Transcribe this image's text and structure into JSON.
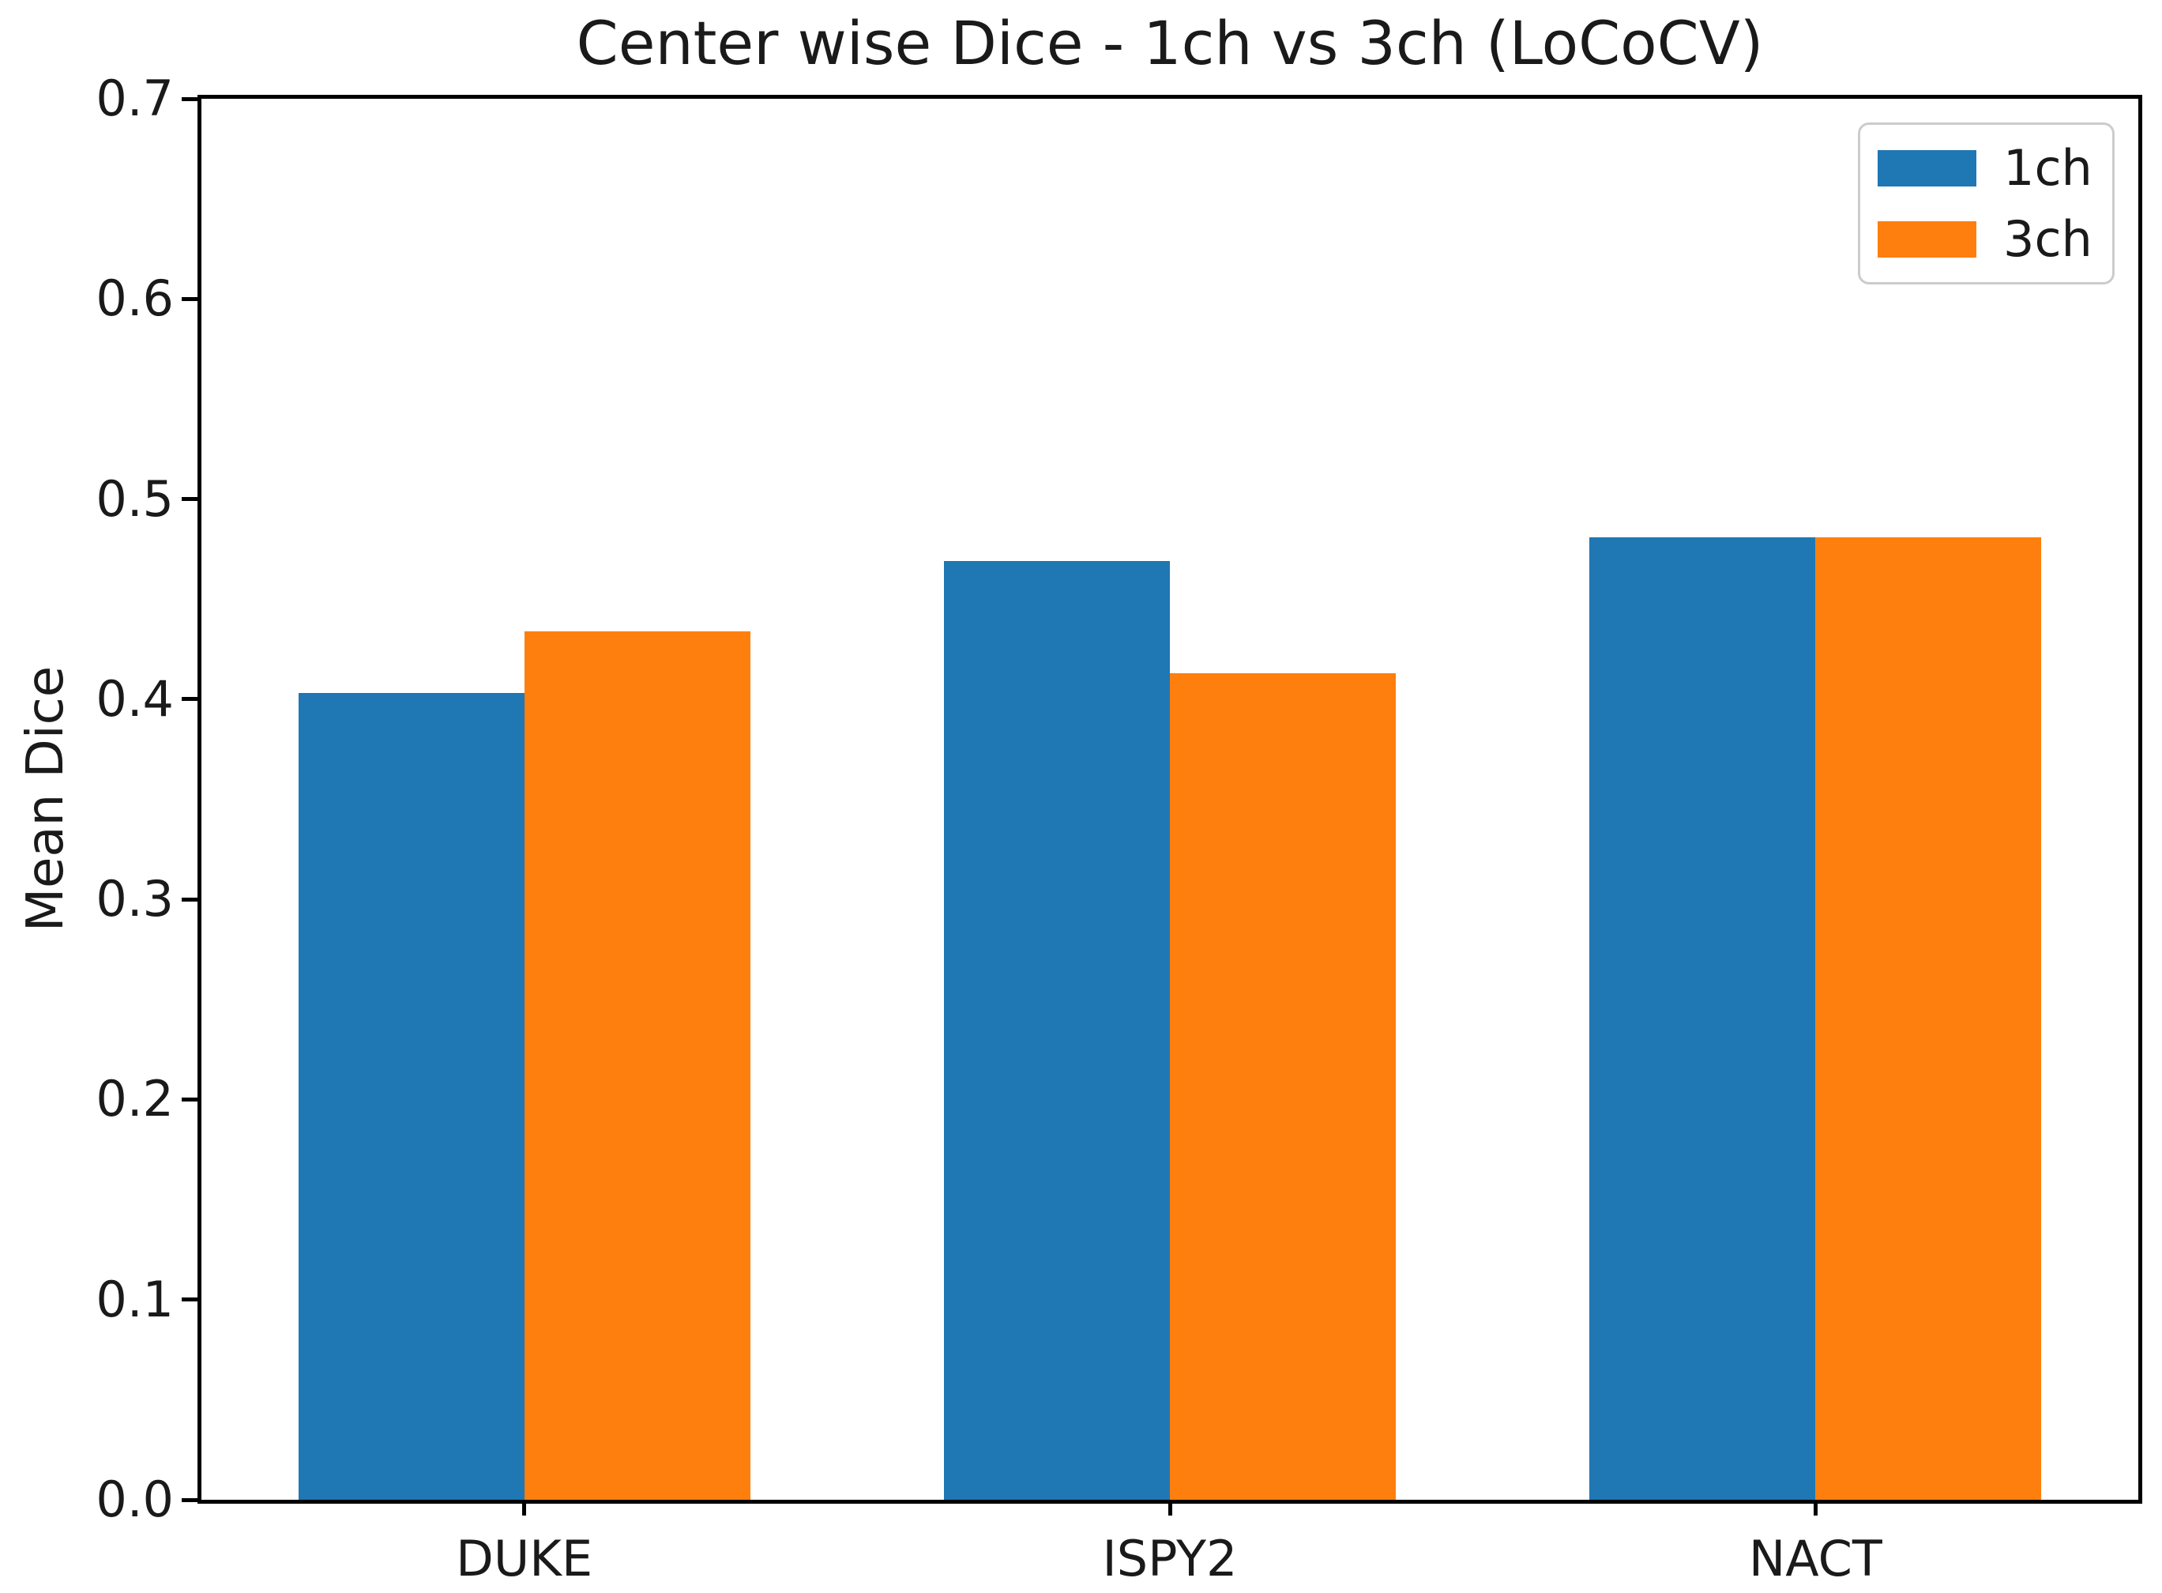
{
  "chart_data": {
    "type": "bar",
    "title": "Center wise Dice - 1ch vs 3ch (LoCoCV)",
    "xlabel": "",
    "ylabel": "Mean Dice",
    "categories": [
      "DUKE",
      "ISPY2",
      "NACT"
    ],
    "series": [
      {
        "name": "1ch",
        "color": "#1f77b4",
        "values": [
          0.403,
          0.469,
          0.481
        ]
      },
      {
        "name": "3ch",
        "color": "#ff7f0e",
        "values": [
          0.434,
          0.413,
          0.481
        ]
      }
    ],
    "ylim": [
      0.0,
      0.7
    ],
    "yticks": [
      "0.0",
      "0.1",
      "0.2",
      "0.3",
      "0.4",
      "0.5",
      "0.6",
      "0.7"
    ],
    "bar_width_fraction": 0.35,
    "legend": {
      "position": "upper right",
      "entries": [
        "1ch",
        "3ch"
      ]
    },
    "grid": false,
    "plot_background": "#ffffff",
    "axis_color": "#000000",
    "text_color": "#1a1a1a"
  }
}
